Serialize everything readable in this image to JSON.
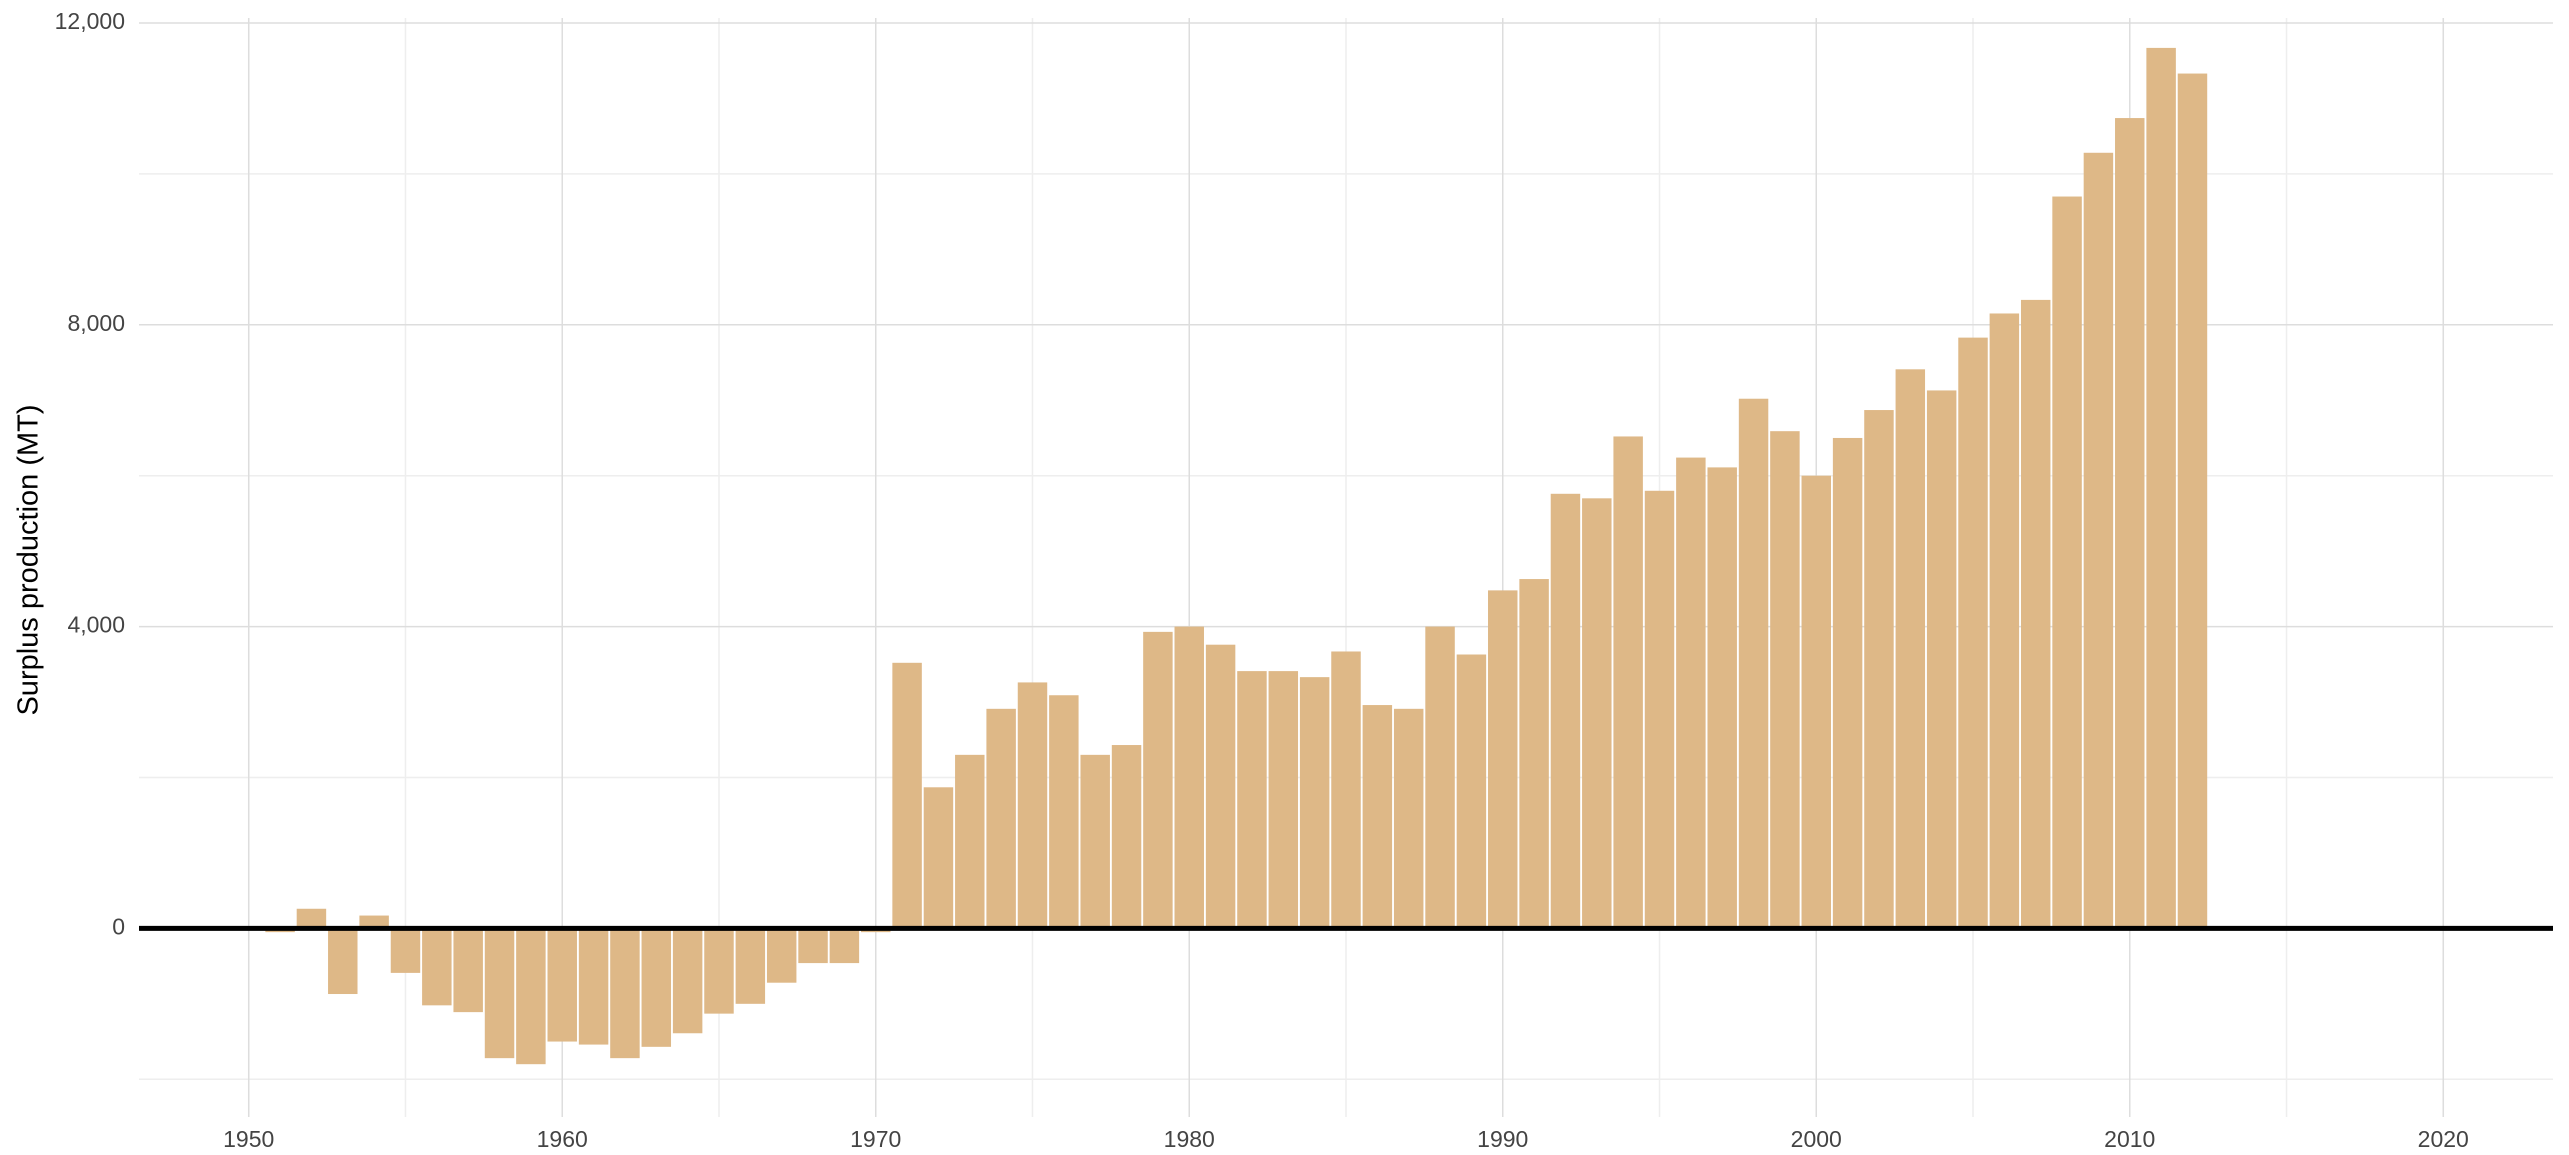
{
  "chart_data": {
    "type": "bar",
    "y_label": "Surplus production (MT)",
    "x": [
      1951,
      1952,
      1953,
      1954,
      1955,
      1956,
      1957,
      1958,
      1959,
      1960,
      1961,
      1962,
      1963,
      1964,
      1965,
      1966,
      1967,
      1968,
      1969,
      1970,
      1971,
      1972,
      1973,
      1974,
      1975,
      1976,
      1977,
      1978,
      1979,
      1980,
      1981,
      1982,
      1983,
      1984,
      1985,
      1986,
      1987,
      1988,
      1989,
      1990,
      1991,
      1992,
      1993,
      1994,
      1995,
      1996,
      1997,
      1998,
      1999,
      2000,
      2001,
      2002,
      2003,
      2004,
      2005,
      2006,
      2007,
      2008,
      2009,
      2010,
      2011,
      2012
    ],
    "values": [
      -50,
      260,
      -870,
      170,
      -590,
      -1020,
      -1110,
      -1720,
      -1800,
      -1500,
      -1540,
      -1720,
      -1570,
      -1390,
      -1130,
      -1000,
      -720,
      -460,
      -460,
      -50,
      3520,
      1870,
      2300,
      2910,
      3260,
      3090,
      2300,
      2430,
      3930,
      4000,
      3760,
      3410,
      3410,
      3330,
      3670,
      2960,
      2910,
      4000,
      3630,
      4480,
      4630,
      5760,
      5700,
      6520,
      5800,
      6240,
      6110,
      7020,
      6590,
      6000,
      6500,
      6870,
      7410,
      7130,
      7830,
      8150,
      8330,
      9700,
      10280,
      10740,
      11670,
      11330
    ],
    "color": "#deb887",
    "xlim": [
      1946.5,
      2023.5
    ],
    "xticks": [
      1950,
      1960,
      1970,
      1980,
      1990,
      2000,
      2010,
      2020
    ],
    "xticks_minor": [
      1955,
      1965,
      1975,
      1985,
      1995,
      2005,
      2015
    ],
    "ylim": [
      -2500,
      12000
    ],
    "yticks": [
      0,
      {
        "value": 4000,
        "label": "4,000"
      },
      {
        "value": 8000,
        "label": "8,000"
      },
      {
        "value": 12000,
        "label": "12,000"
      }
    ],
    "yticks_minor": [
      -2000,
      2000,
      6000,
      10000
    ],
    "grid": true
  }
}
